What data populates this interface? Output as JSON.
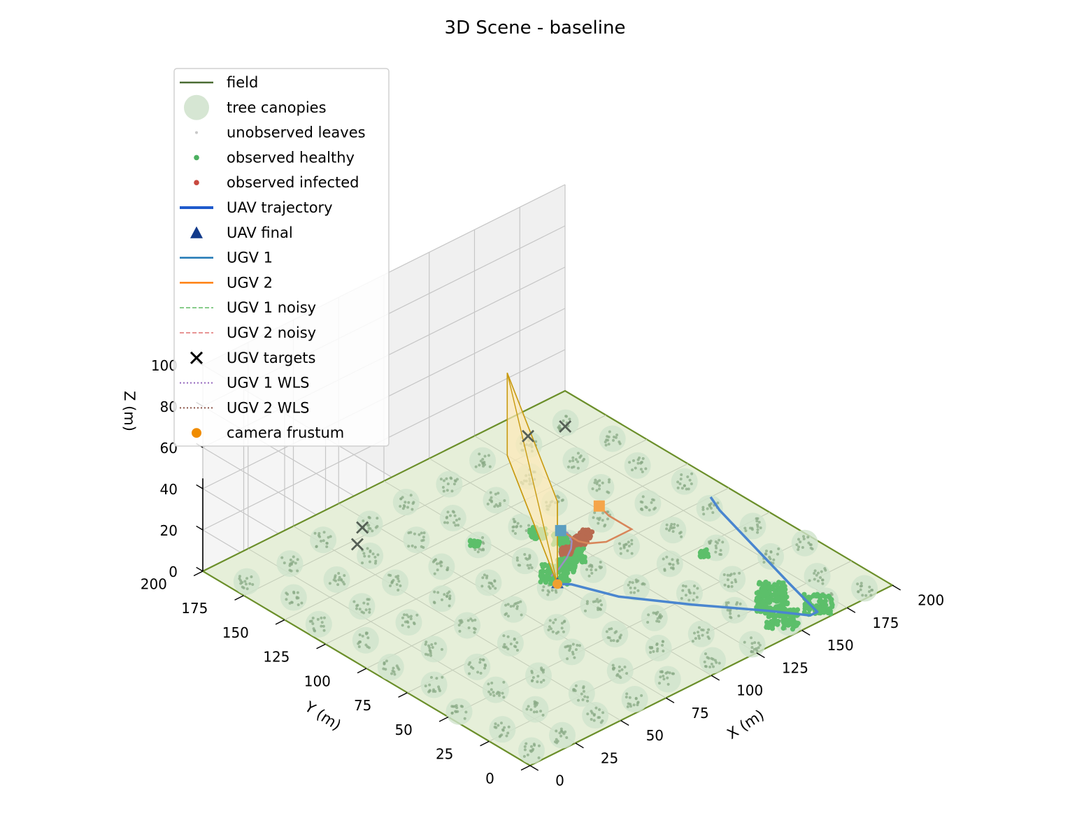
{
  "chart_data": {
    "type": "scatter",
    "projection": "3d",
    "title": "3D Scene - baseline",
    "xlabel": "X (m)",
    "ylabel": "Y (m)",
    "zlabel": "Z (m)",
    "xlim": [
      0,
      200
    ],
    "ylim": [
      0,
      200
    ],
    "zlim": [
      0,
      100
    ],
    "x_ticks": [
      "0",
      "25",
      "50",
      "75",
      "100",
      "125",
      "150",
      "175",
      "200"
    ],
    "y_ticks": [
      "0",
      "25",
      "50",
      "75",
      "100",
      "125",
      "150",
      "175",
      "200"
    ],
    "z_ticks": [
      "0",
      "20",
      "40",
      "60",
      "80",
      "100"
    ],
    "grid": true,
    "legend_position": "upper-left",
    "legend": [
      {
        "label": "field",
        "kind": "line",
        "color": "#4a6b33"
      },
      {
        "label": "tree canopies",
        "kind": "bigdot",
        "color": "#d6e6d3"
      },
      {
        "label": "unobserved leaves",
        "kind": "tinydot",
        "color": "#c8c8c8"
      },
      {
        "label": "observed healthy",
        "kind": "dot",
        "color": "#4cb060"
      },
      {
        "label": "observed infected",
        "kind": "dot",
        "color": "#c8493f"
      },
      {
        "label": "UAV trajectory",
        "kind": "thickline",
        "color": "#1f5acc"
      },
      {
        "label": "UAV final",
        "kind": "triangle",
        "color": "#123a8a"
      },
      {
        "label": "UGV 1",
        "kind": "line",
        "color": "#1f77b4"
      },
      {
        "label": "UGV 2",
        "kind": "line",
        "color": "#ff7f0e"
      },
      {
        "label": "UGV 1 noisy",
        "kind": "dashed",
        "color": "#6cc070"
      },
      {
        "label": "UGV 2 noisy",
        "kind": "dashed",
        "color": "#e07070"
      },
      {
        "label": "UGV targets",
        "kind": "cross",
        "color": "#000000"
      },
      {
        "label": "UGV 1 WLS",
        "kind": "dotted",
        "color": "#9467bd"
      },
      {
        "label": "UGV 2 WLS",
        "kind": "dotted",
        "color": "#8c564b"
      },
      {
        "label": "camera frustum",
        "kind": "circle",
        "color": "#f08c00"
      }
    ],
    "colors": {
      "field_fill": "#e6efd9",
      "field_edge": "#6b8f2a",
      "canopy": "#cfe3cc",
      "unobserved_leaf": "#8aaa86",
      "healthy": "#5cbf6a",
      "infected": "#b86a50",
      "uav": "#4a86cf",
      "ugv1": "#5b9ec0",
      "ugv2": "#f5a54a",
      "target": "#555f55",
      "frustum_fill": "#fde9b8",
      "frustum_edge": "#c89a10"
    },
    "trees": [
      [
        8,
        8
      ],
      [
        25,
        8
      ],
      [
        45,
        10
      ],
      [
        65,
        8
      ],
      [
        85,
        10
      ],
      [
        108,
        8
      ],
      [
        128,
        6
      ],
      [
        150,
        8
      ],
      [
        172,
        10
      ],
      [
        190,
        6
      ],
      [
        10,
        28
      ],
      [
        30,
        30
      ],
      [
        52,
        26
      ],
      [
        75,
        28
      ],
      [
        98,
        30
      ],
      [
        118,
        26
      ],
      [
        140,
        30
      ],
      [
        160,
        28
      ],
      [
        182,
        26
      ],
      [
        6,
        50
      ],
      [
        28,
        52
      ],
      [
        48,
        48
      ],
      [
        70,
        52
      ],
      [
        92,
        50
      ],
      [
        112,
        48
      ],
      [
        135,
        52
      ],
      [
        155,
        48
      ],
      [
        178,
        50
      ],
      [
        195,
        48
      ],
      [
        12,
        72
      ],
      [
        34,
        70
      ],
      [
        56,
        74
      ],
      [
        78,
        70
      ],
      [
        100,
        72
      ],
      [
        122,
        70
      ],
      [
        144,
        74
      ],
      [
        166,
        70
      ],
      [
        188,
        72
      ],
      [
        8,
        94
      ],
      [
        30,
        92
      ],
      [
        52,
        96
      ],
      [
        74,
        92
      ],
      [
        96,
        94
      ],
      [
        118,
        92
      ],
      [
        140,
        96
      ],
      [
        162,
        92
      ],
      [
        184,
        94
      ],
      [
        14,
        116
      ],
      [
        36,
        114
      ],
      [
        58,
        118
      ],
      [
        80,
        114
      ],
      [
        102,
        116
      ],
      [
        124,
        114
      ],
      [
        146,
        118
      ],
      [
        168,
        114
      ],
      [
        190,
        116
      ],
      [
        8,
        138
      ],
      [
        30,
        136
      ],
      [
        52,
        140
      ],
      [
        74,
        136
      ],
      [
        96,
        138
      ],
      [
        118,
        136
      ],
      [
        140,
        140
      ],
      [
        162,
        136
      ],
      [
        184,
        138
      ],
      [
        14,
        160
      ],
      [
        36,
        158
      ],
      [
        58,
        162
      ],
      [
        80,
        158
      ],
      [
        102,
        160
      ],
      [
        124,
        158
      ],
      [
        146,
        162
      ],
      [
        168,
        158
      ],
      [
        190,
        160
      ],
      [
        8,
        182
      ],
      [
        30,
        180
      ],
      [
        52,
        184
      ],
      [
        74,
        180
      ],
      [
        96,
        182
      ],
      [
        118,
        180
      ],
      [
        140,
        184
      ],
      [
        162,
        180
      ],
      [
        184,
        182
      ]
    ],
    "uav_trajectory": [
      [
        100,
        94
      ],
      [
        104,
        90
      ],
      [
        112,
        70
      ],
      [
        130,
        45
      ],
      [
        150,
        20
      ],
      [
        160,
        6
      ],
      [
        164,
        6
      ],
      [
        170,
        30
      ],
      [
        178,
        60
      ],
      [
        186,
        90
      ],
      [
        190,
        100
      ]
    ],
    "uav_final": [
      100,
      94,
      0
    ],
    "ugv1_path": [
      [
        102,
        100
      ],
      [
        104,
        101
      ],
      [
        108,
        102
      ],
      [
        112,
        104
      ],
      [
        116,
        106
      ],
      [
        122,
        110
      ],
      [
        126,
        114
      ],
      [
        128,
        118
      ],
      [
        129,
        120
      ],
      [
        128,
        123
      ]
    ],
    "ugv2_path": [
      [
        128,
        123
      ],
      [
        128,
        118
      ],
      [
        128,
        112
      ],
      [
        130,
        108
      ],
      [
        136,
        104
      ],
      [
        146,
        104
      ],
      [
        150,
        104
      ],
      [
        150,
        108
      ],
      [
        150,
        118
      ],
      [
        152,
        126
      ]
    ],
    "ugv1_start": [
      128,
      123,
      0
    ],
    "ugv2_start": [
      152,
      126,
      0
    ],
    "ugv_targets": [
      [
        166,
        185
      ],
      [
        182,
        180
      ],
      [
        70,
        180
      ],
      [
        60,
        172
      ]
    ],
    "healthy_clusters": [
      [
        104,
        100,
        8
      ],
      [
        112,
        102,
        6
      ],
      [
        120,
        106,
        6
      ],
      [
        124,
        112,
        6
      ],
      [
        150,
        12,
        9
      ],
      [
        155,
        24,
        9
      ],
      [
        168,
        10,
        8
      ],
      [
        160,
        30,
        8
      ],
      [
        120,
        128,
        4
      ],
      [
        124,
        118,
        4
      ],
      [
        160,
        70,
        2
      ],
      [
        96,
        140,
        2
      ]
    ],
    "infected_clusters": [
      [
        120,
        110,
        4
      ],
      [
        128,
        112,
        5
      ],
      [
        130,
        112,
        5
      ],
      [
        134,
        114,
        4
      ]
    ],
    "camera_position": [
      100,
      94,
      0
    ],
    "frustum_corners": [
      [
        100,
        94,
        40
      ],
      [
        150,
        180,
        40
      ],
      [
        100,
        94,
        0
      ],
      [
        150,
        180,
        0
      ]
    ]
  }
}
